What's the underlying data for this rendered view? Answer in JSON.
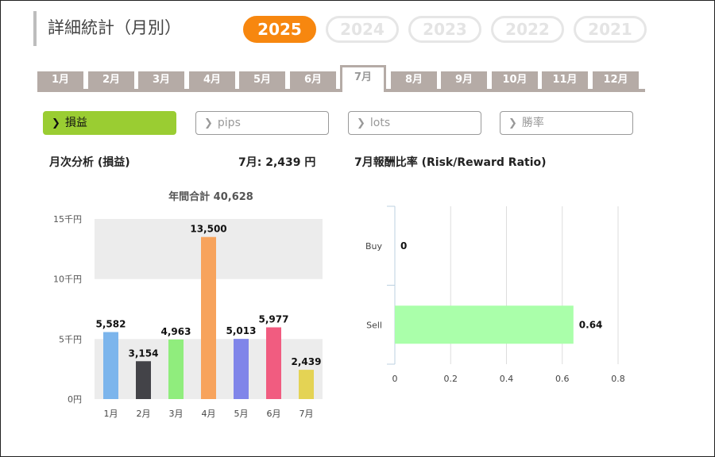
{
  "header": {
    "title": "詳細統計（月別）"
  },
  "years": [
    {
      "label": "2025",
      "active": true
    },
    {
      "label": "2024",
      "active": false
    },
    {
      "label": "2023",
      "active": false
    },
    {
      "label": "2022",
      "active": false
    },
    {
      "label": "2021",
      "active": false
    }
  ],
  "months": [
    {
      "label": "1月"
    },
    {
      "label": "2月"
    },
    {
      "label": "3月"
    },
    {
      "label": "4月"
    },
    {
      "label": "5月"
    },
    {
      "label": "6月"
    },
    {
      "label": "7月",
      "active": true
    },
    {
      "label": "8月"
    },
    {
      "label": "9月"
    },
    {
      "label": "10月"
    },
    {
      "label": "11月"
    },
    {
      "label": "12月"
    }
  ],
  "filters": [
    {
      "label": "損益",
      "active": true
    },
    {
      "label": "pips",
      "active": false
    },
    {
      "label": "lots",
      "active": false
    },
    {
      "label": "勝率",
      "active": false
    }
  ],
  "monthly": {
    "title": "月次分析 (損益)",
    "current_label": "7月:",
    "current_value": "2,439 円"
  },
  "ratio": {
    "title": "7月報酬比率 (Risk/Reward Ratio)"
  },
  "colors": {
    "accent": "#f7870f",
    "active_filter": "#9acd32",
    "tab": "#b5aba6"
  },
  "chart_data": [
    {
      "type": "bar",
      "title": "年間合計 40,628",
      "categories": [
        "1月",
        "2月",
        "3月",
        "4月",
        "5月",
        "6月",
        "7月"
      ],
      "values": [
        5582,
        3154,
        4963,
        13500,
        5013,
        5977,
        2439
      ],
      "value_labels": [
        "5,582",
        "3,154",
        "4,963",
        "13,500",
        "5,013",
        "5,977",
        "2,439"
      ],
      "colors": [
        "#7cb5ec",
        "#434348",
        "#90ed7d",
        "#f7a35c",
        "#8085e9",
        "#f15c80",
        "#e4d354"
      ],
      "yticks": [
        {
          "value": 0,
          "label": "0円"
        },
        {
          "value": 5000,
          "label": "5千円"
        },
        {
          "value": 10000,
          "label": "10千円"
        },
        {
          "value": 15000,
          "label": "15千円"
        }
      ],
      "ylim": [
        0,
        15000
      ],
      "grid": true
    },
    {
      "type": "bar",
      "orientation": "horizontal",
      "categories": [
        "Buy",
        "Sell"
      ],
      "values": [
        0,
        0.64
      ],
      "value_labels": [
        "0",
        "0.64"
      ],
      "color": "#aaffaa",
      "xticks": [
        {
          "value": 0,
          "label": "0"
        },
        {
          "value": 0.2,
          "label": "0.2"
        },
        {
          "value": 0.4,
          "label": "0.4"
        },
        {
          "value": 0.6,
          "label": "0.6"
        },
        {
          "value": 0.8,
          "label": "0.8"
        }
      ],
      "xlim": [
        0,
        0.8
      ],
      "grid": true
    }
  ]
}
